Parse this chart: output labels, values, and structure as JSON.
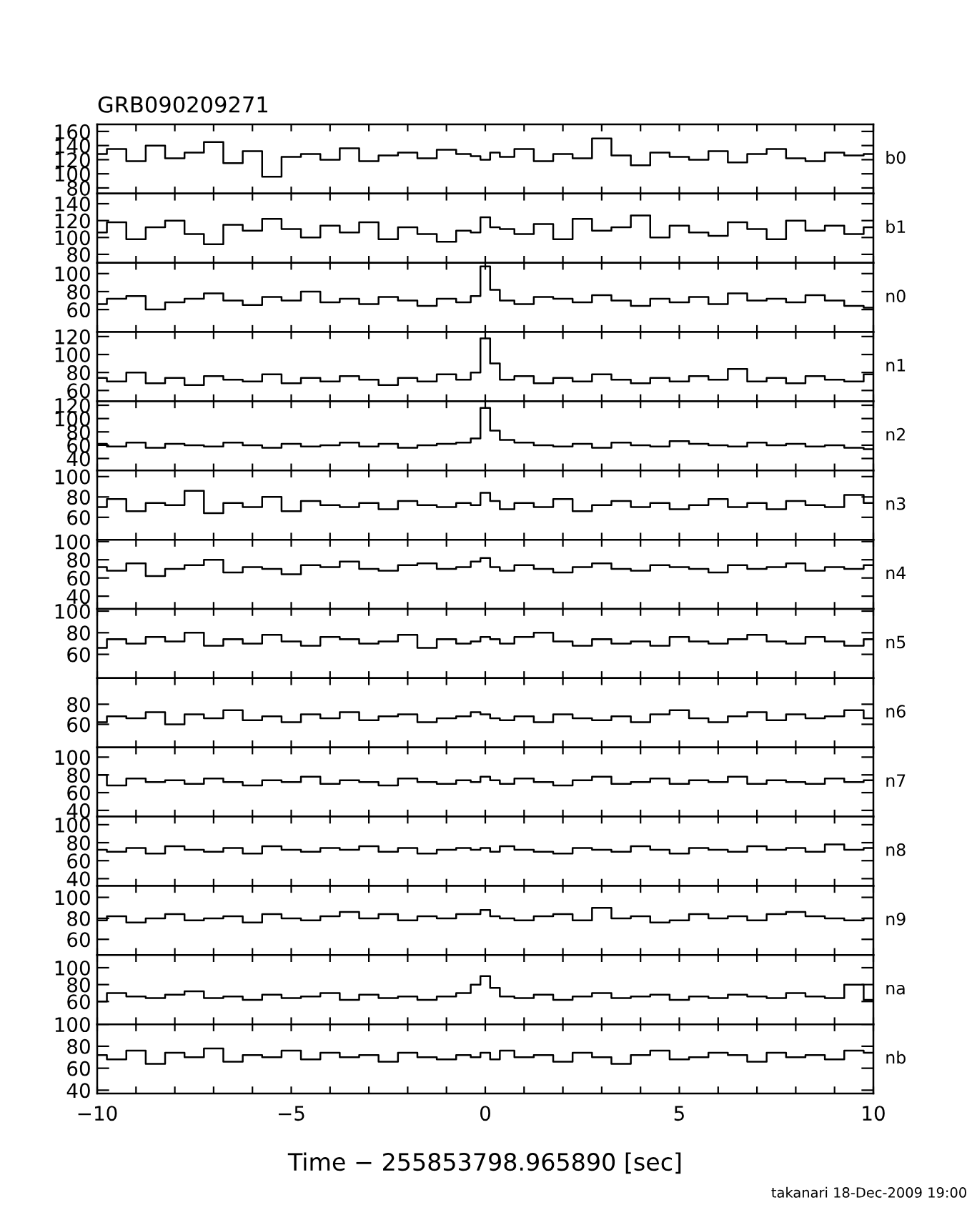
{
  "chart_data": [
    {
      "type": "step",
      "title": "GRB090209271",
      "x": [
        -10,
        -9.5,
        -9,
        -8.5,
        -8,
        -7.5,
        -7,
        -6.5,
        -6,
        -5.5,
        -5,
        -4.5,
        -4,
        -3.5,
        -3,
        -2.5,
        -2,
        -1.5,
        -1,
        -0.5,
        -0.25,
        0,
        0.25,
        0.5,
        1,
        1.5,
        2,
        2.5,
        3,
        3.5,
        4,
        4.5,
        5,
        5.5,
        6,
        6.5,
        7,
        7.5,
        8,
        8.5,
        9,
        9.5,
        10
      ],
      "series": [
        {
          "name": "b0",
          "color": "#000000",
          "values": [
            128,
            135,
            118,
            140,
            122,
            130,
            145,
            115,
            132,
            96,
            124,
            128,
            120,
            136,
            118,
            126,
            130,
            122,
            134,
            128,
            125,
            120,
            130,
            124,
            135,
            118,
            128,
            122,
            150,
            126,
            112,
            130,
            124,
            120,
            132,
            116,
            128,
            135,
            122,
            118,
            130,
            126,
            128
          ]
        }
      ],
      "xlim": [
        -10,
        10
      ],
      "xticks": [
        -10,
        -9,
        -8,
        -7,
        -6,
        -5,
        -4,
        -3,
        -2,
        -1,
        0,
        1,
        2,
        3,
        4,
        5,
        6,
        7,
        8,
        9,
        10
      ],
      "ylim": [
        72,
        170
      ],
      "yticks": [
        80,
        100,
        120,
        140,
        160
      ],
      "tick_labels": "y",
      "line_style": "solid"
    },
    {
      "type": "step",
      "x": [
        -10,
        -9.5,
        -9,
        -8.5,
        -8,
        -7.5,
        -7,
        -6.5,
        -6,
        -5.5,
        -5,
        -4.5,
        -4,
        -3.5,
        -3,
        -2.5,
        -2,
        -1.5,
        -1,
        -0.5,
        -0.25,
        0,
        0.25,
        0.5,
        1,
        1.5,
        2,
        2.5,
        3,
        3.5,
        4,
        4.5,
        5,
        5.5,
        6,
        6.5,
        7,
        7.5,
        8,
        8.5,
        9,
        9.5,
        10
      ],
      "series": [
        {
          "name": "b1",
          "color": "#000000",
          "values": [
            106,
            118,
            98,
            112,
            120,
            104,
            92,
            115,
            108,
            122,
            110,
            100,
            114,
            106,
            118,
            98,
            112,
            104,
            95,
            108,
            106,
            124,
            112,
            110,
            104,
            116,
            98,
            122,
            108,
            112,
            126,
            100,
            114,
            106,
            102,
            118,
            110,
            98,
            120,
            108,
            114,
            104,
            112
          ]
        }
      ],
      "xlim": [
        -10,
        10
      ],
      "xticks": [
        -10,
        -9,
        -8,
        -7,
        -6,
        -5,
        -4,
        -3,
        -2,
        -1,
        0,
        1,
        2,
        3,
        4,
        5,
        6,
        7,
        8,
        9,
        10
      ],
      "ylim": [
        70,
        152
      ],
      "yticks": [
        80,
        100,
        120,
        140
      ],
      "tick_labels": "y",
      "line_style": "solid"
    },
    {
      "type": "step",
      "x": [
        -10,
        -9.5,
        -9,
        -8.5,
        -8,
        -7.5,
        -7,
        -6.5,
        -6,
        -5.5,
        -5,
        -4.5,
        -4,
        -3.5,
        -3,
        -2.5,
        -2,
        -1.5,
        -1,
        -0.5,
        -0.25,
        0,
        0.25,
        0.5,
        1,
        1.5,
        2,
        2.5,
        3,
        3.5,
        4,
        4.5,
        5,
        5.5,
        6,
        6.5,
        7,
        7.5,
        8,
        8.5,
        9,
        9.5,
        10
      ],
      "series": [
        {
          "name": "n0",
          "color": "#000000",
          "values": [
            66,
            72,
            75,
            60,
            68,
            72,
            78,
            70,
            65,
            74,
            70,
            80,
            68,
            72,
            66,
            74,
            70,
            64,
            72,
            68,
            75,
            108,
            82,
            70,
            66,
            74,
            72,
            68,
            76,
            70,
            64,
            72,
            68,
            74,
            66,
            78,
            70,
            72,
            68,
            76,
            70,
            64,
            62
          ]
        }
      ],
      "xlim": [
        -10,
        10
      ],
      "xticks": [
        -10,
        -9,
        -8,
        -7,
        -6,
        -5,
        -4,
        -3,
        -2,
        -1,
        0,
        1,
        2,
        3,
        4,
        5,
        6,
        7,
        8,
        9,
        10
      ],
      "ylim": [
        35,
        112
      ],
      "yticks": [
        60,
        80,
        100
      ],
      "tick_labels": "y",
      "line_style": "solid"
    },
    {
      "type": "step",
      "x": [
        -10,
        -9.5,
        -9,
        -8.5,
        -8,
        -7.5,
        -7,
        -6.5,
        -6,
        -5.5,
        -5,
        -4.5,
        -4,
        -3.5,
        -3,
        -2.5,
        -2,
        -1.5,
        -1,
        -0.5,
        -0.25,
        0,
        0.25,
        0.5,
        1,
        1.5,
        2,
        2.5,
        3,
        3.5,
        4,
        4.5,
        5,
        5.5,
        6,
        6.5,
        7,
        7.5,
        8,
        8.5,
        9,
        9.5,
        10
      ],
      "series": [
        {
          "name": "n1",
          "color": "#000000",
          "values": [
            74,
            70,
            80,
            68,
            74,
            66,
            76,
            72,
            70,
            78,
            68,
            74,
            70,
            76,
            72,
            66,
            74,
            70,
            78,
            72,
            80,
            118,
            90,
            72,
            76,
            68,
            74,
            70,
            78,
            72,
            68,
            74,
            70,
            76,
            72,
            84,
            70,
            74,
            68,
            76,
            72,
            70,
            78
          ]
        }
      ],
      "xlim": [
        -10,
        10
      ],
      "xticks": [
        -10,
        -9,
        -8,
        -7,
        -6,
        -5,
        -4,
        -3,
        -2,
        -1,
        0,
        1,
        2,
        3,
        4,
        5,
        6,
        7,
        8,
        9,
        10
      ],
      "ylim": [
        48,
        125
      ],
      "yticks": [
        60,
        80,
        100,
        120
      ],
      "tick_labels": "y",
      "line_style": "solid"
    },
    {
      "type": "step",
      "x": [
        -10,
        -9.5,
        -9,
        -8.5,
        -8,
        -7.5,
        -7,
        -6.5,
        -6,
        -5.5,
        -5,
        -4.5,
        -4,
        -3.5,
        -3,
        -2.5,
        -2,
        -1.5,
        -1,
        -0.5,
        -0.25,
        0,
        0.25,
        0.5,
        1,
        1.5,
        2,
        2.5,
        3,
        3.5,
        4,
        4.5,
        5,
        5.5,
        6,
        6.5,
        7,
        7.5,
        8,
        8.5,
        9,
        9.5,
        10
      ],
      "series": [
        {
          "name": "n2",
          "color": "#000000",
          "values": [
            62,
            58,
            64,
            56,
            62,
            60,
            58,
            64,
            60,
            56,
            62,
            58,
            60,
            64,
            58,
            62,
            56,
            60,
            62,
            64,
            70,
            116,
            82,
            68,
            64,
            60,
            58,
            62,
            56,
            64,
            60,
            58,
            66,
            62,
            60,
            58,
            64,
            60,
            62,
            58,
            60,
            56,
            54
          ]
        }
      ],
      "xlim": [
        -10,
        10
      ],
      "xticks": [
        -10,
        -9,
        -8,
        -7,
        -6,
        -5,
        -4,
        -3,
        -2,
        -1,
        0,
        1,
        2,
        3,
        4,
        5,
        6,
        7,
        8,
        9,
        10
      ],
      "ylim": [
        22,
        126
      ],
      "yticks": [
        40,
        60,
        80,
        100,
        120
      ],
      "tick_labels": "y",
      "line_style": "solid"
    },
    {
      "type": "step",
      "x": [
        -10,
        -9.5,
        -9,
        -8.5,
        -8,
        -7.5,
        -7,
        -6.5,
        -6,
        -5.5,
        -5,
        -4.5,
        -4,
        -3.5,
        -3,
        -2.5,
        -2,
        -1.5,
        -1,
        -0.5,
        -0.25,
        0,
        0.25,
        0.5,
        1,
        1.5,
        2,
        2.5,
        3,
        3.5,
        4,
        4.5,
        5,
        5.5,
        6,
        6.5,
        7,
        7.5,
        8,
        8.5,
        9,
        9.5,
        10
      ],
      "series": [
        {
          "name": "n3",
          "color": "#000000",
          "values": [
            70,
            78,
            66,
            74,
            72,
            86,
            64,
            74,
            70,
            80,
            66,
            76,
            72,
            70,
            74,
            68,
            76,
            72,
            70,
            74,
            72,
            84,
            76,
            68,
            74,
            70,
            78,
            66,
            72,
            76,
            70,
            74,
            68,
            72,
            78,
            70,
            74,
            68,
            76,
            72,
            70,
            82,
            74
          ]
        }
      ],
      "xlim": [
        -10,
        10
      ],
      "xticks": [
        -10,
        -9,
        -8,
        -7,
        -6,
        -5,
        -4,
        -3,
        -2,
        -1,
        0,
        1,
        2,
        3,
        4,
        5,
        6,
        7,
        8,
        9,
        10
      ],
      "ylim": [
        38,
        106
      ],
      "yticks": [
        60,
        80,
        100
      ],
      "tick_labels": "y",
      "line_style": "solid"
    },
    {
      "type": "step",
      "x": [
        -10,
        -9.5,
        -9,
        -8.5,
        -8,
        -7.5,
        -7,
        -6.5,
        -6,
        -5.5,
        -5,
        -4.5,
        -4,
        -3.5,
        -3,
        -2.5,
        -2,
        -1.5,
        -1,
        -0.5,
        -0.25,
        0,
        0.25,
        0.5,
        1,
        1.5,
        2,
        2.5,
        3,
        3.5,
        4,
        4.5,
        5,
        5.5,
        6,
        6.5,
        7,
        7.5,
        8,
        8.5,
        9,
        9.5,
        10
      ],
      "series": [
        {
          "name": "n4",
          "color": "#000000",
          "values": [
            72,
            68,
            76,
            62,
            70,
            74,
            80,
            66,
            72,
            70,
            64,
            74,
            72,
            78,
            70,
            68,
            74,
            76,
            70,
            72,
            78,
            82,
            72,
            68,
            74,
            70,
            66,
            72,
            76,
            70,
            68,
            74,
            72,
            70,
            66,
            74,
            70,
            72,
            76,
            68,
            72,
            70,
            74
          ]
        }
      ],
      "xlim": [
        -10,
        10
      ],
      "xticks": [
        -10,
        -9,
        -8,
        -7,
        -6,
        -5,
        -4,
        -3,
        -2,
        -1,
        0,
        1,
        2,
        3,
        4,
        5,
        6,
        7,
        8,
        9,
        10
      ],
      "ylim": [
        26,
        102
      ],
      "yticks": [
        40,
        60,
        80,
        100
      ],
      "tick_labels": "y",
      "line_style": "solid"
    },
    {
      "type": "step",
      "x": [
        -10,
        -9.5,
        -9,
        -8.5,
        -8,
        -7.5,
        -7,
        -6.5,
        -6,
        -5.5,
        -5,
        -4.5,
        -4,
        -3.5,
        -3,
        -2.5,
        -2,
        -1.5,
        -1,
        -0.5,
        -0.25,
        0,
        0.25,
        0.5,
        1,
        1.5,
        2,
        2.5,
        3,
        3.5,
        4,
        4.5,
        5,
        5.5,
        6,
        6.5,
        7,
        7.5,
        8,
        8.5,
        9,
        9.5,
        10
      ],
      "series": [
        {
          "name": "n5",
          "color": "#000000",
          "values": [
            66,
            74,
            70,
            76,
            72,
            80,
            68,
            74,
            70,
            78,
            72,
            68,
            76,
            74,
            70,
            72,
            78,
            66,
            74,
            70,
            72,
            76,
            74,
            70,
            76,
            80,
            72,
            68,
            74,
            70,
            72,
            68,
            76,
            72,
            70,
            74,
            78,
            72,
            70,
            76,
            72,
            68,
            74
          ]
        }
      ],
      "xlim": [
        -10,
        10
      ],
      "xticks": [
        -10,
        -9,
        -8,
        -7,
        -6,
        -5,
        -4,
        -3,
        -2,
        -1,
        0,
        1,
        2,
        3,
        4,
        5,
        6,
        7,
        8,
        9,
        10
      ],
      "ylim": [
        38,
        102
      ],
      "yticks": [
        60,
        80,
        100
      ],
      "tick_labels": "y",
      "line_style": "solid"
    },
    {
      "type": "step",
      "x": [
        -10,
        -9.5,
        -9,
        -8.5,
        -8,
        -7.5,
        -7,
        -6.5,
        -6,
        -5.5,
        -5,
        -4.5,
        -4,
        -3.5,
        -3,
        -2.5,
        -2,
        -1.5,
        -1,
        -0.5,
        -0.25,
        0,
        0.25,
        0.5,
        1,
        1.5,
        2,
        2.5,
        3,
        3.5,
        4,
        4.5,
        5,
        5.5,
        6,
        6.5,
        7,
        7.5,
        8,
        8.5,
        9,
        9.5,
        10
      ],
      "series": [
        {
          "name": "n6",
          "color": "#000000",
          "values": [
            62,
            68,
            66,
            72,
            60,
            70,
            66,
            74,
            64,
            68,
            62,
            70,
            66,
            72,
            64,
            68,
            70,
            62,
            66,
            68,
            72,
            70,
            66,
            64,
            68,
            62,
            70,
            66,
            64,
            68,
            62,
            70,
            74,
            66,
            62,
            68,
            72,
            64,
            70,
            66,
            68,
            74,
            66
          ]
        }
      ],
      "xlim": [
        -10,
        10
      ],
      "xticks": [
        -10,
        -9,
        -8,
        -7,
        -6,
        -5,
        -4,
        -3,
        -2,
        -1,
        0,
        1,
        2,
        3,
        4,
        5,
        6,
        7,
        8,
        9,
        10
      ],
      "ylim": [
        37,
        106
      ],
      "yticks": [
        60,
        80
      ],
      "tick_labels": "y",
      "line_style": "solid"
    },
    {
      "type": "step",
      "x": [
        -10,
        -9.5,
        -9,
        -8.5,
        -8,
        -7.5,
        -7,
        -6.5,
        -6,
        -5.5,
        -5,
        -4.5,
        -4,
        -3.5,
        -3,
        -2.5,
        -2,
        -1.5,
        -1,
        -0.5,
        -0.25,
        0,
        0.25,
        0.5,
        1,
        1.5,
        2,
        2.5,
        3,
        3.5,
        4,
        4.5,
        5,
        5.5,
        6,
        6.5,
        7,
        7.5,
        8,
        8.5,
        9,
        9.5,
        10
      ],
      "series": [
        {
          "name": "n7",
          "color": "#000000",
          "values": [
            80,
            68,
            76,
            72,
            74,
            70,
            76,
            72,
            68,
            74,
            72,
            78,
            70,
            74,
            72,
            68,
            76,
            72,
            70,
            74,
            72,
            78,
            74,
            70,
            76,
            72,
            68,
            74,
            78,
            70,
            72,
            76,
            70,
            74,
            72,
            78,
            70,
            74,
            72,
            70,
            76,
            72,
            74
          ]
        }
      ],
      "xlim": [
        -10,
        10
      ],
      "xticks": [
        -10,
        -9,
        -8,
        -7,
        -6,
        -5,
        -4,
        -3,
        -2,
        -1,
        0,
        1,
        2,
        3,
        4,
        5,
        6,
        7,
        8,
        9,
        10
      ],
      "ylim": [
        33,
        111
      ],
      "yticks": [
        40,
        60,
        80,
        100
      ],
      "tick_labels": "y",
      "line_style": "solid"
    },
    {
      "type": "step",
      "x": [
        -10,
        -9.5,
        -9,
        -8.5,
        -8,
        -7.5,
        -7,
        -6.5,
        -6,
        -5.5,
        -5,
        -4.5,
        -4,
        -3.5,
        -3,
        -2.5,
        -2,
        -1.5,
        -1,
        -0.5,
        -0.25,
        0,
        0.25,
        0.5,
        1,
        1.5,
        2,
        2.5,
        3,
        3.5,
        4,
        4.5,
        5,
        5.5,
        6,
        6.5,
        7,
        7.5,
        8,
        8.5,
        9,
        9.5,
        10
      ],
      "series": [
        {
          "name": "n8",
          "color": "#000000",
          "values": [
            72,
            70,
            74,
            68,
            76,
            72,
            70,
            74,
            68,
            76,
            72,
            70,
            74,
            72,
            76,
            70,
            74,
            68,
            72,
            74,
            72,
            74,
            70,
            76,
            72,
            70,
            68,
            74,
            72,
            70,
            76,
            72,
            68,
            74,
            72,
            70,
            76,
            72,
            74,
            70,
            78,
            72,
            74
          ]
        }
      ],
      "xlim": [
        -10,
        10
      ],
      "xticks": [
        -10,
        -9,
        -8,
        -7,
        -6,
        -5,
        -4,
        -3,
        -2,
        -1,
        0,
        1,
        2,
        3,
        4,
        5,
        6,
        7,
        8,
        9,
        10
      ],
      "ylim": [
        32,
        109
      ],
      "yticks": [
        40,
        60,
        80,
        100
      ],
      "tick_labels": "y",
      "line_style": "solid"
    },
    {
      "type": "step",
      "x": [
        -10,
        -9.5,
        -9,
        -8.5,
        -8,
        -7.5,
        -7,
        -6.5,
        -6,
        -5.5,
        -5,
        -4.5,
        -4,
        -3.5,
        -3,
        -2.5,
        -2,
        -1.5,
        -1,
        -0.5,
        -0.25,
        0,
        0.25,
        0.5,
        1,
        1.5,
        2,
        2.5,
        3,
        3.5,
        4,
        4.5,
        5,
        5.5,
        6,
        6.5,
        7,
        7.5,
        8,
        8.5,
        9,
        9.5,
        10
      ],
      "series": [
        {
          "name": "n9",
          "color": "#000000",
          "values": [
            78,
            82,
            76,
            80,
            84,
            78,
            80,
            82,
            76,
            84,
            80,
            78,
            82,
            86,
            80,
            84,
            78,
            82,
            80,
            84,
            84,
            88,
            82,
            80,
            78,
            82,
            84,
            78,
            90,
            80,
            82,
            76,
            78,
            84,
            80,
            82,
            78,
            84,
            86,
            82,
            80,
            78,
            80
          ]
        }
      ],
      "xlim": [
        -10,
        10
      ],
      "xticks": [
        -10,
        -9,
        -8,
        -7,
        -6,
        -5,
        -4,
        -3,
        -2,
        -1,
        0,
        1,
        2,
        3,
        4,
        5,
        6,
        7,
        8,
        9,
        10
      ],
      "ylim": [
        45,
        111
      ],
      "yticks": [
        60,
        80,
        100
      ],
      "tick_labels": "y",
      "line_style": "solid"
    },
    {
      "type": "step",
      "x": [
        -10,
        -9.5,
        -9,
        -8.5,
        -8,
        -7.5,
        -7,
        -6.5,
        -6,
        -5.5,
        -5,
        -4.5,
        -4,
        -3.5,
        -3,
        -2.5,
        -2,
        -1.5,
        -1,
        -0.5,
        -0.25,
        0,
        0.25,
        0.5,
        1,
        1.5,
        2,
        2.5,
        3,
        3.5,
        4,
        4.5,
        5,
        5.5,
        6,
        6.5,
        7,
        7.5,
        8,
        8.5,
        9,
        9.5,
        10
      ],
      "series": [
        {
          "name": "na",
          "color": "#000000",
          "values": [
            60,
            70,
            66,
            64,
            68,
            72,
            64,
            66,
            62,
            68,
            64,
            66,
            70,
            62,
            68,
            64,
            66,
            62,
            66,
            70,
            80,
            90,
            76,
            66,
            64,
            68,
            62,
            66,
            70,
            64,
            66,
            68,
            62,
            66,
            64,
            68,
            66,
            64,
            70,
            66,
            64,
            80,
            62
          ]
        }
      ],
      "xlim": [
        -10,
        10
      ],
      "xticks": [
        -10,
        -9,
        -8,
        -7,
        -6,
        -5,
        -4,
        -3,
        -2,
        -1,
        0,
        1,
        2,
        3,
        4,
        5,
        6,
        7,
        8,
        9,
        10
      ],
      "ylim": [
        33,
        115
      ],
      "yticks": [
        60,
        80,
        100
      ],
      "tick_labels": "y",
      "line_style": "solid"
    },
    {
      "type": "step",
      "xlabel": "Time − 255853798.965890 [sec]",
      "annotations": [
        "takanari 18-Dec-2009 19:00"
      ],
      "x": [
        -10,
        -9.5,
        -9,
        -8.5,
        -8,
        -7.5,
        -7,
        -6.5,
        -6,
        -5.5,
        -5,
        -4.5,
        -4,
        -3.5,
        -3,
        -2.5,
        -2,
        -1.5,
        -1,
        -0.5,
        -0.25,
        0,
        0.25,
        0.5,
        1,
        1.5,
        2,
        2.5,
        3,
        3.5,
        4,
        4.5,
        5,
        5.5,
        6,
        6.5,
        7,
        7.5,
        8,
        8.5,
        9,
        9.5,
        10
      ],
      "series": [
        {
          "name": "nb",
          "color": "#000000",
          "values": [
            72,
            68,
            76,
            64,
            74,
            70,
            78,
            66,
            72,
            70,
            76,
            68,
            74,
            70,
            72,
            66,
            74,
            70,
            68,
            72,
            70,
            74,
            68,
            76,
            70,
            72,
            66,
            74,
            70,
            64,
            72,
            76,
            68,
            70,
            74,
            72,
            66,
            74,
            70,
            72,
            68,
            76,
            74
          ]
        }
      ],
      "xlim": [
        -10,
        10
      ],
      "xticks": [
        {
          "value": -10,
          "label": "−10"
        },
        {
          "value": -9,
          "label": null
        },
        {
          "value": -8,
          "label": null
        },
        {
          "value": -7,
          "label": null
        },
        {
          "value": -6,
          "label": null
        },
        {
          "value": -5,
          "label": "−5"
        },
        {
          "value": -4,
          "label": null
        },
        {
          "value": -3,
          "label": null
        },
        {
          "value": -2,
          "label": null
        },
        {
          "value": -1,
          "label": null
        },
        0,
        {
          "value": 1,
          "label": null
        },
        {
          "value": 2,
          "label": null
        },
        {
          "value": 3,
          "label": null
        },
        {
          "value": 4,
          "label": null
        },
        5,
        {
          "value": 6,
          "label": null
        },
        {
          "value": 7,
          "label": null
        },
        {
          "value": 8,
          "label": null
        },
        {
          "value": 9,
          "label": null
        },
        10
      ],
      "ylim": [
        37,
        100
      ],
      "yticks": [
        40,
        60,
        80,
        100
      ],
      "line_style": "solid"
    }
  ]
}
